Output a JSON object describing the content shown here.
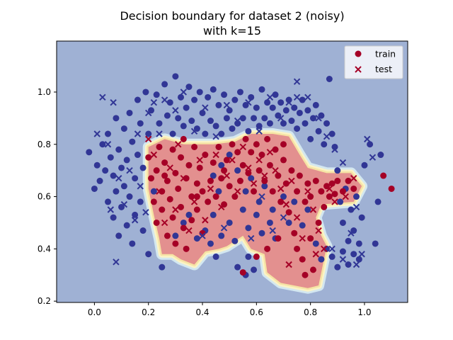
{
  "chart_data": {
    "type": "scatter",
    "title_lines": [
      "Decision boundary for dataset 2 (noisy)",
      "with k=15"
    ],
    "xlabel": "",
    "ylabel": "",
    "xlim": [
      -0.14,
      1.16
    ],
    "ylim": [
      0.195,
      1.195
    ],
    "x_ticks": [
      "0.0",
      "0.2",
      "0.4",
      "0.6",
      "0.8",
      "1.0"
    ],
    "x_tick_values": [
      0.0,
      0.2,
      0.4,
      0.6,
      0.8,
      1.0
    ],
    "y_ticks": [
      "0.2",
      "0.4",
      "0.6",
      "0.8",
      "1.0"
    ],
    "y_tick_values": [
      0.2,
      0.4,
      0.6,
      0.8,
      1.0
    ],
    "grid": false,
    "legend_position": "top-right",
    "legend": [
      {
        "label": "train",
        "marker": "circle"
      },
      {
        "label": "test",
        "marker": "x"
      }
    ],
    "colors": {
      "class_0": "#313695",
      "class_1": "#a50026",
      "region_0": "#9fb1d4",
      "region_1": "#e3908f",
      "contour_band_outer": "#f6e3a4",
      "contour_band_inner": "#fbf3c6",
      "contour_band_blue": "#d3e7f0"
    },
    "decision_region_class_1_polygon": [
      [
        0.2,
        0.79
      ],
      [
        0.26,
        0.82
      ],
      [
        0.33,
        0.8
      ],
      [
        0.44,
        0.8
      ],
      [
        0.52,
        0.81
      ],
      [
        0.58,
        0.84
      ],
      [
        0.66,
        0.84
      ],
      [
        0.72,
        0.83
      ],
      [
        0.76,
        0.76
      ],
      [
        0.79,
        0.71
      ],
      [
        0.86,
        0.69
      ],
      [
        0.95,
        0.69
      ],
      [
        0.99,
        0.64
      ],
      [
        0.96,
        0.58
      ],
      [
        0.84,
        0.57
      ],
      [
        0.82,
        0.52
      ],
      [
        0.84,
        0.45
      ],
      [
        0.86,
        0.41
      ],
      [
        0.83,
        0.26
      ],
      [
        0.79,
        0.25
      ],
      [
        0.69,
        0.27
      ],
      [
        0.64,
        0.31
      ],
      [
        0.63,
        0.38
      ],
      [
        0.58,
        0.4
      ],
      [
        0.55,
        0.45
      ],
      [
        0.49,
        0.41
      ],
      [
        0.46,
        0.4
      ],
      [
        0.41,
        0.39
      ],
      [
        0.37,
        0.34
      ],
      [
        0.32,
        0.36
      ],
      [
        0.29,
        0.38
      ],
      [
        0.25,
        0.38
      ],
      [
        0.24,
        0.44
      ],
      [
        0.22,
        0.53
      ],
      [
        0.2,
        0.63
      ]
    ],
    "train_class_0": [
      [
        -0.02,
        0.77
      ],
      [
        0.0,
        0.63
      ],
      [
        0.01,
        0.72
      ],
      [
        0.02,
        0.66
      ],
      [
        0.03,
        0.8
      ],
      [
        0.04,
        0.7
      ],
      [
        0.05,
        0.84
      ],
      [
        0.05,
        0.58
      ],
      [
        0.06,
        0.75
      ],
      [
        0.07,
        0.68
      ],
      [
        0.07,
        0.52
      ],
      [
        0.08,
        0.9
      ],
      [
        0.08,
        0.62
      ],
      [
        0.09,
        0.78
      ],
      [
        0.09,
        0.45
      ],
      [
        0.1,
        0.71
      ],
      [
        0.1,
        0.56
      ],
      [
        0.11,
        0.86
      ],
      [
        0.11,
        0.64
      ],
      [
        0.12,
        0.49
      ],
      [
        0.12,
        0.74
      ],
      [
        0.13,
        0.92
      ],
      [
        0.13,
        0.6
      ],
      [
        0.14,
        0.81
      ],
      [
        0.14,
        0.42
      ],
      [
        0.15,
        0.67
      ],
      [
        0.15,
        0.53
      ],
      [
        0.16,
        0.97
      ],
      [
        0.16,
        0.76
      ],
      [
        0.17,
        0.88
      ],
      [
        0.17,
        0.58
      ],
      [
        0.18,
        0.47
      ],
      [
        0.18,
        0.71
      ],
      [
        0.19,
        1.0
      ],
      [
        0.2,
        0.84
      ],
      [
        0.2,
        0.38
      ],
      [
        0.21,
        0.93
      ],
      [
        0.22,
        0.62
      ],
      [
        0.23,
        0.99
      ],
      [
        0.24,
        0.88
      ],
      [
        0.25,
        0.33
      ],
      [
        0.26,
        1.03
      ],
      [
        0.27,
        0.91
      ],
      [
        0.28,
        0.96
      ],
      [
        0.29,
        0.84
      ],
      [
        0.3,
        1.06
      ],
      [
        0.31,
        0.9
      ],
      [
        0.32,
        0.98
      ],
      [
        0.33,
        0.87
      ],
      [
        0.34,
        0.94
      ],
      [
        0.35,
        1.02
      ],
      [
        0.36,
        0.89
      ],
      [
        0.37,
        0.97
      ],
      [
        0.38,
        0.86
      ],
      [
        0.39,
        1.0
      ],
      [
        0.4,
        0.92
      ],
      [
        0.41,
        0.84
      ],
      [
        0.42,
        0.98
      ],
      [
        0.43,
        0.89
      ],
      [
        0.44,
        1.01
      ],
      [
        0.45,
        0.87
      ],
      [
        0.46,
        0.95
      ],
      [
        0.47,
        0.84
      ],
      [
        0.48,
        0.99
      ],
      [
        0.49,
        0.9
      ],
      [
        0.5,
        0.93
      ],
      [
        0.51,
        0.86
      ],
      [
        0.52,
        0.97
      ],
      [
        0.53,
        0.88
      ],
      [
        0.54,
        1.0
      ],
      [
        0.55,
        0.9
      ],
      [
        0.56,
        0.95
      ],
      [
        0.57,
        0.85
      ],
      [
        0.58,
        0.98
      ],
      [
        0.59,
        0.9
      ],
      [
        0.6,
        0.94
      ],
      [
        0.61,
        0.87
      ],
      [
        0.62,
        1.01
      ],
      [
        0.63,
        0.9
      ],
      [
        0.64,
        0.96
      ],
      [
        0.65,
        0.88
      ],
      [
        0.66,
        0.94
      ],
      [
        0.67,
        0.99
      ],
      [
        0.68,
        0.91
      ],
      [
        0.69,
        0.96
      ],
      [
        0.7,
        0.88
      ],
      [
        0.71,
        0.93
      ],
      [
        0.72,
        0.97
      ],
      [
        0.73,
        0.89
      ],
      [
        0.74,
        0.94
      ],
      [
        0.75,
        0.86
      ],
      [
        0.76,
        0.92
      ],
      [
        0.77,
        0.97
      ],
      [
        0.78,
        0.88
      ],
      [
        0.79,
        0.93
      ],
      [
        0.8,
        0.82
      ],
      [
        0.81,
        0.9
      ],
      [
        0.82,
        0.95
      ],
      [
        0.83,
        0.85
      ],
      [
        0.84,
        0.91
      ],
      [
        0.85,
        0.8
      ],
      [
        0.86,
        0.88
      ],
      [
        0.87,
        1.05
      ],
      [
        0.88,
        0.84
      ],
      [
        0.89,
        0.79
      ],
      [
        0.9,
        0.7
      ],
      [
        0.91,
        0.58
      ],
      [
        0.92,
        0.5
      ],
      [
        0.93,
        0.63
      ],
      [
        0.94,
        0.43
      ],
      [
        0.95,
        0.55
      ],
      [
        0.96,
        0.47
      ],
      [
        0.97,
        0.6
      ],
      [
        0.98,
        0.42
      ],
      [
        0.99,
        0.52
      ],
      [
        1.0,
        0.72
      ],
      [
        1.02,
        0.8
      ],
      [
        1.04,
        0.42
      ],
      [
        1.05,
        0.58
      ],
      [
        1.06,
        0.76
      ],
      [
        0.3,
        0.45
      ],
      [
        0.33,
        0.5
      ],
      [
        0.35,
        0.53
      ],
      [
        0.38,
        0.44
      ],
      [
        0.41,
        0.47
      ],
      [
        0.44,
        0.53
      ],
      [
        0.47,
        0.45
      ],
      [
        0.5,
        0.5
      ],
      [
        0.52,
        0.43
      ],
      [
        0.55,
        0.55
      ],
      [
        0.57,
        0.48
      ],
      [
        0.6,
        0.53
      ],
      [
        0.62,
        0.46
      ],
      [
        0.65,
        0.5
      ],
      [
        0.67,
        0.44
      ],
      [
        0.7,
        0.6
      ],
      [
        0.72,
        0.5
      ],
      [
        0.74,
        0.58
      ],
      [
        0.77,
        0.49
      ],
      [
        0.79,
        0.55
      ],
      [
        0.82,
        0.42
      ],
      [
        0.84,
        0.36
      ],
      [
        0.86,
        0.4
      ],
      [
        0.88,
        0.37
      ],
      [
        0.9,
        0.33
      ],
      [
        0.92,
        0.39
      ],
      [
        0.94,
        0.34
      ],
      [
        0.96,
        0.38
      ],
      [
        0.98,
        0.36
      ],
      [
        0.57,
        0.37
      ],
      [
        0.59,
        0.32
      ],
      [
        0.56,
        0.3
      ],
      [
        0.53,
        0.33
      ],
      [
        0.45,
        0.37
      ],
      [
        0.43,
        0.42
      ],
      [
        0.47,
        0.72
      ],
      [
        0.5,
        0.76
      ],
      [
        0.53,
        0.7
      ],
      [
        0.56,
        0.62
      ],
      [
        0.58,
        0.67
      ],
      [
        0.61,
        0.58
      ],
      [
        0.63,
        0.64
      ],
      [
        0.66,
        0.55
      ],
      [
        0.46,
        0.62
      ],
      [
        0.44,
        0.68
      ]
    ],
    "train_class_1": [
      [
        0.2,
        0.75
      ],
      [
        0.21,
        0.67
      ],
      [
        0.22,
        0.58
      ],
      [
        0.23,
        0.7
      ],
      [
        0.23,
        0.5
      ],
      [
        0.24,
        0.79
      ],
      [
        0.25,
        0.62
      ],
      [
        0.25,
        0.55
      ],
      [
        0.26,
        0.73
      ],
      [
        0.27,
        0.45
      ],
      [
        0.27,
        0.66
      ],
      [
        0.28,
        0.59
      ],
      [
        0.29,
        0.78
      ],
      [
        0.29,
        0.52
      ],
      [
        0.3,
        0.69
      ],
      [
        0.3,
        0.42
      ],
      [
        0.31,
        0.63
      ],
      [
        0.32,
        0.75
      ],
      [
        0.32,
        0.56
      ],
      [
        0.33,
        0.48
      ],
      [
        0.34,
        0.67
      ],
      [
        0.34,
        0.4
      ],
      [
        0.35,
        0.72
      ],
      [
        0.36,
        0.6
      ],
      [
        0.36,
        0.51
      ],
      [
        0.37,
        0.79
      ],
      [
        0.38,
        0.65
      ],
      [
        0.38,
        0.55
      ],
      [
        0.39,
        0.71
      ],
      [
        0.4,
        0.46
      ],
      [
        0.4,
        0.62
      ],
      [
        0.41,
        0.76
      ],
      [
        0.42,
        0.58
      ],
      [
        0.43,
        0.66
      ],
      [
        0.44,
        0.73
      ],
      [
        0.45,
        0.6
      ],
      [
        0.46,
        0.79
      ],
      [
        0.47,
        0.67
      ],
      [
        0.48,
        0.57
      ],
      [
        0.49,
        0.74
      ],
      [
        0.5,
        0.64
      ],
      [
        0.51,
        0.8
      ],
      [
        0.52,
        0.6
      ],
      [
        0.53,
        0.77
      ],
      [
        0.54,
        0.66
      ],
      [
        0.55,
        0.72
      ],
      [
        0.56,
        0.82
      ],
      [
        0.57,
        0.69
      ],
      [
        0.58,
        0.77
      ],
      [
        0.59,
        0.62
      ],
      [
        0.6,
        0.8
      ],
      [
        0.61,
        0.7
      ],
      [
        0.62,
        0.76
      ],
      [
        0.63,
        0.66
      ],
      [
        0.64,
        0.82
      ],
      [
        0.65,
        0.72
      ],
      [
        0.66,
        0.62
      ],
      [
        0.67,
        0.78
      ],
      [
        0.68,
        0.68
      ],
      [
        0.69,
        0.58
      ],
      [
        0.7,
        0.74
      ],
      [
        0.71,
        0.65
      ],
      [
        0.72,
        0.54
      ],
      [
        0.73,
        0.7
      ],
      [
        0.74,
        0.46
      ],
      [
        0.75,
        0.62
      ],
      [
        0.75,
        0.4
      ],
      [
        0.76,
        0.68
      ],
      [
        0.77,
        0.36
      ],
      [
        0.78,
        0.58
      ],
      [
        0.78,
        0.3
      ],
      [
        0.79,
        0.65
      ],
      [
        0.8,
        0.44
      ],
      [
        0.8,
        0.6
      ],
      [
        0.81,
        0.32
      ],
      [
        0.82,
        0.66
      ],
      [
        0.83,
        0.5
      ],
      [
        0.84,
        0.62
      ],
      [
        0.85,
        0.56
      ],
      [
        0.86,
        0.64
      ],
      [
        0.87,
        0.6
      ],
      [
        0.88,
        0.65
      ],
      [
        0.89,
        0.61
      ],
      [
        0.9,
        0.66
      ],
      [
        0.92,
        0.62
      ],
      [
        0.94,
        0.66
      ],
      [
        0.96,
        0.63
      ],
      [
        1.07,
        0.68
      ],
      [
        1.1,
        0.63
      ],
      [
        0.55,
        0.31
      ],
      [
        0.6,
        0.37
      ],
      [
        0.64,
        0.4
      ],
      [
        0.68,
        0.44
      ],
      [
        0.33,
        0.82
      ],
      [
        0.38,
        0.6
      ],
      [
        0.26,
        0.68
      ],
      [
        0.48,
        0.7
      ],
      [
        0.7,
        0.8
      ]
    ],
    "test_class_0": [
      [
        0.01,
        0.84
      ],
      [
        0.03,
        0.98
      ],
      [
        0.05,
        0.8
      ],
      [
        0.06,
        0.55
      ],
      [
        0.07,
        0.96
      ],
      [
        0.08,
        0.35
      ],
      [
        0.09,
        0.67
      ],
      [
        0.11,
        0.57
      ],
      [
        0.13,
        0.7
      ],
      [
        0.15,
        0.51
      ],
      [
        0.16,
        0.84
      ],
      [
        0.17,
        0.64
      ],
      [
        0.19,
        0.54
      ],
      [
        0.2,
        0.92
      ],
      [
        0.22,
        0.96
      ],
      [
        0.24,
        0.84
      ],
      [
        0.26,
        0.97
      ],
      [
        0.3,
        0.93
      ],
      [
        0.33,
        1.0
      ],
      [
        0.37,
        0.85
      ],
      [
        0.41,
        0.94
      ],
      [
        0.45,
        0.83
      ],
      [
        0.49,
        0.95
      ],
      [
        0.53,
        0.89
      ],
      [
        0.57,
        0.96
      ],
      [
        0.61,
        0.85
      ],
      [
        0.65,
        0.98
      ],
      [
        0.69,
        0.9
      ],
      [
        0.72,
        0.96
      ],
      [
        0.75,
        1.04
      ],
      [
        0.79,
        0.98
      ],
      [
        0.83,
        0.9
      ],
      [
        0.86,
        0.83
      ],
      [
        0.89,
        0.78
      ],
      [
        0.92,
        0.73
      ],
      [
        0.95,
        0.46
      ],
      [
        0.97,
        0.56
      ],
      [
        0.99,
        0.38
      ],
      [
        1.01,
        0.82
      ],
      [
        1.03,
        0.75
      ],
      [
        0.4,
        0.45
      ],
      [
        0.48,
        0.48
      ],
      [
        0.58,
        0.44
      ],
      [
        0.66,
        0.47
      ],
      [
        0.88,
        0.4
      ],
      [
        0.92,
        0.36
      ],
      [
        0.97,
        0.34
      ],
      [
        0.62,
        0.6
      ],
      [
        0.7,
        0.52
      ],
      [
        0.75,
        0.98
      ]
    ],
    "test_class_1": [
      [
        0.2,
        0.82
      ],
      [
        0.22,
        0.76
      ],
      [
        0.24,
        0.62
      ],
      [
        0.26,
        0.5
      ],
      [
        0.28,
        0.71
      ],
      [
        0.3,
        0.55
      ],
      [
        0.31,
        0.8
      ],
      [
        0.33,
        0.67
      ],
      [
        0.35,
        0.47
      ],
      [
        0.37,
        0.58
      ],
      [
        0.39,
        0.74
      ],
      [
        0.41,
        0.51
      ],
      [
        0.43,
        0.63
      ],
      [
        0.45,
        0.76
      ],
      [
        0.47,
        0.56
      ],
      [
        0.49,
        0.68
      ],
      [
        0.51,
        0.74
      ],
      [
        0.53,
        0.62
      ],
      [
        0.55,
        0.79
      ],
      [
        0.57,
        0.71
      ],
      [
        0.59,
        0.65
      ],
      [
        0.61,
        0.74
      ],
      [
        0.63,
        0.68
      ],
      [
        0.65,
        0.77
      ],
      [
        0.67,
        0.7
      ],
      [
        0.69,
        0.63
      ],
      [
        0.71,
        0.57
      ],
      [
        0.73,
        0.66
      ],
      [
        0.75,
        0.52
      ],
      [
        0.77,
        0.44
      ],
      [
        0.79,
        0.62
      ],
      [
        0.81,
        0.55
      ],
      [
        0.83,
        0.47
      ],
      [
        0.85,
        0.4
      ],
      [
        0.87,
        0.63
      ],
      [
        0.89,
        0.58
      ],
      [
        0.93,
        0.6
      ],
      [
        0.96,
        0.67
      ],
      [
        0.72,
        0.34
      ],
      [
        0.82,
        0.38
      ]
    ]
  }
}
